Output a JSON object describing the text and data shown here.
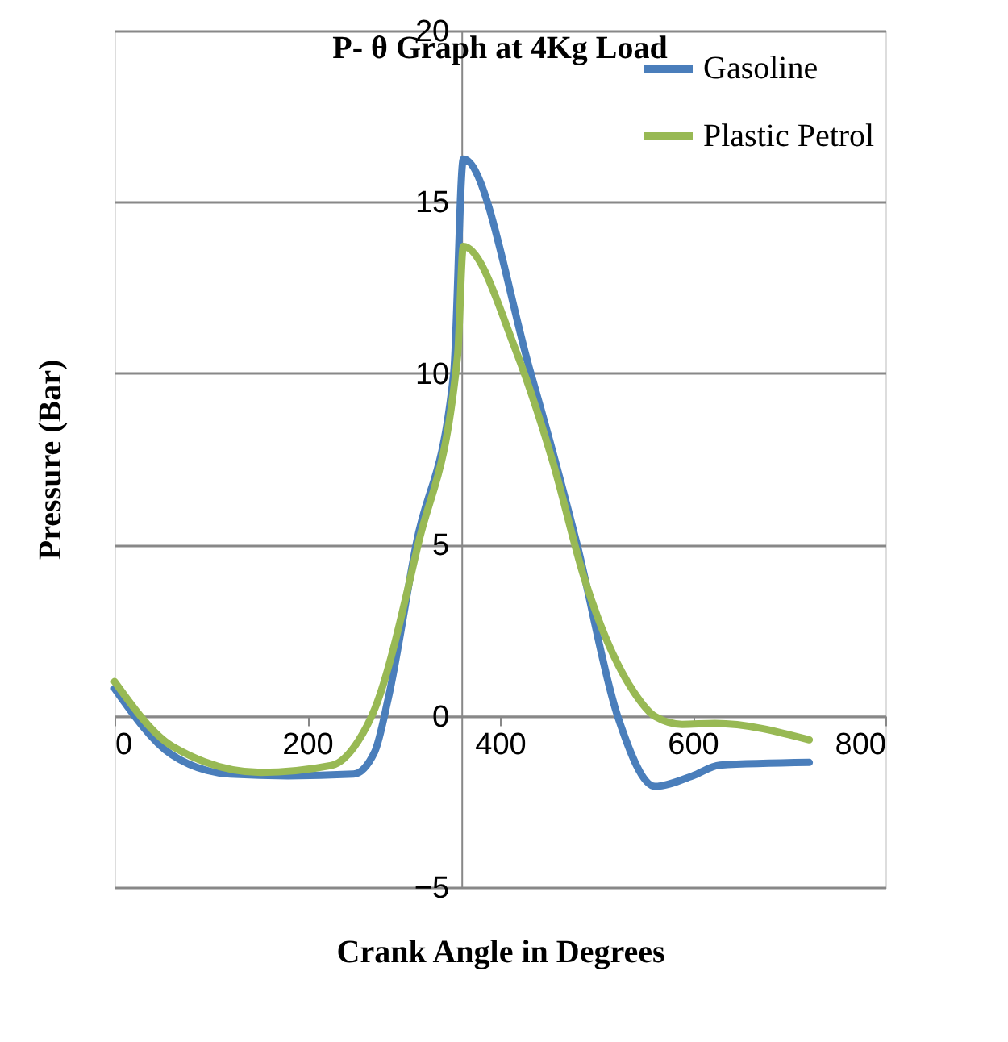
{
  "chart_data": {
    "type": "line",
    "title": "P- θ Graph at 4Kg Load",
    "xlabel": "Crank Angle in Degrees",
    "ylabel": "Pressure (Bar)",
    "xlim": [
      0,
      800
    ],
    "xticks": [
      0,
      200,
      400,
      600,
      800
    ],
    "ylim": [
      -5,
      20
    ],
    "yticks": [
      -5,
      0,
      5,
      10,
      15,
      20
    ],
    "grid": "y",
    "legend": "top right",
    "marker": "none",
    "line_style": "solid",
    "series": [
      {
        "name": "Gasoline",
        "color": "#4a7ebb",
        "x": [
          0,
          59,
          120,
          180,
          248,
          270,
          284,
          313,
          352,
          362,
          432,
          480,
          522,
          561,
          600,
          628,
          721
        ],
        "values": [
          0.8,
          -1.13,
          -1.7,
          -1.75,
          -1.7,
          -1.05,
          0.5,
          5,
          10,
          16.25,
          10,
          5,
          0,
          -2.06,
          -1.75,
          -1.44,
          -1.36
        ]
      },
      {
        "name": "Plastic Petrol",
        "color": "#98b954",
        "x": [
          0,
          60,
          152,
          225,
          253,
          270,
          315,
          356,
          362,
          416,
          455,
          488,
          539,
          561,
          589,
          623,
          721
        ],
        "values": [
          1.0,
          -0.89,
          -1.65,
          -1.45,
          -0.73,
          0.2,
          5,
          10.5,
          13.7,
          10.7,
          7.4,
          3.97,
          0.69,
          -0.02,
          -0.25,
          -0.22,
          -0.7
        ]
      }
    ]
  }
}
